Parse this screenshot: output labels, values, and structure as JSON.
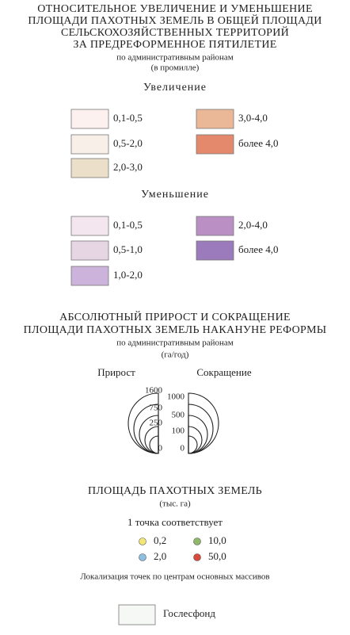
{
  "section1": {
    "title_lines": [
      "ОТНОСИТЕЛЬНОЕ УВЕЛИЧЕНИЕ И УМЕНЬШЕНИЕ",
      "ПЛОЩАДИ ПАХОТНЫХ ЗЕМЕЛЬ В ОБЩЕЙ ПЛОЩАДИ",
      "СЕЛЬСКОХОЗЯЙСТВЕННЫХ ТЕРРИТОРИЙ",
      "ЗА ПРЕДРЕФОРМЕННОЕ ПЯТИЛЕТИЕ"
    ],
    "subtitle": "по административным  районам",
    "unit": "(в промилле)",
    "increase": {
      "heading": "Увеличение",
      "items": [
        {
          "label": "0,1-0,5",
          "color": "#fcf1ee"
        },
        {
          "label": "0,5-2,0",
          "color": "#f8efe9"
        },
        {
          "label": "2,0-3,0",
          "color": "#ecdfc9"
        },
        {
          "label": "3,0-4,0",
          "color": "#ebb897"
        },
        {
          "label": "более 4,0",
          "color": "#e4896b"
        }
      ]
    },
    "decrease": {
      "heading": "Уменьшение",
      "items": [
        {
          "label": "0,1-0,5",
          "color": "#f4e6ef"
        },
        {
          "label": "0,5-1,0",
          "color": "#e6d6e3"
        },
        {
          "label": "1,0-2,0",
          "color": "#cbb3db"
        },
        {
          "label": "2,0-4,0",
          "color": "#b98fc4"
        },
        {
          "label": "более 4,0",
          "color": "#9b7bbb"
        }
      ]
    }
  },
  "section2": {
    "title_lines": [
      "АБСОЛЮТНЫЙ ПРИРОСТ И  СОКРАЩЕНИЕ",
      "ПЛОЩАДИ ПАХОТНЫХ ЗЕМЕЛЬ НАКАНУНЕ РЕФОРМЫ"
    ],
    "subtitle": "по административным  районам",
    "unit": "(га/год)",
    "left_label": "Прирост",
    "right_label": "Сокращение",
    "left_values": [
      "1600",
      "750",
      "250",
      "0"
    ],
    "right_values": [
      "1000",
      "500",
      "100",
      "0"
    ]
  },
  "section3": {
    "title": "ПЛОЩАДЬ ПАХОТНЫХ ЗЕМЕЛЬ",
    "unit": "(тыс. га)",
    "dot_caption": "1 точка соответствует",
    "dots": [
      {
        "label": "0,2",
        "color": "#f3e676"
      },
      {
        "label": "10,0",
        "color": "#8fb86b"
      },
      {
        "label": "2,0",
        "color": "#8fbfe0"
      },
      {
        "label": "50,0",
        "color": "#d94a3c"
      }
    ],
    "note": "Локализация точек по центрам основных массивов"
  },
  "other": {
    "label": "Гослесфонд"
  }
}
